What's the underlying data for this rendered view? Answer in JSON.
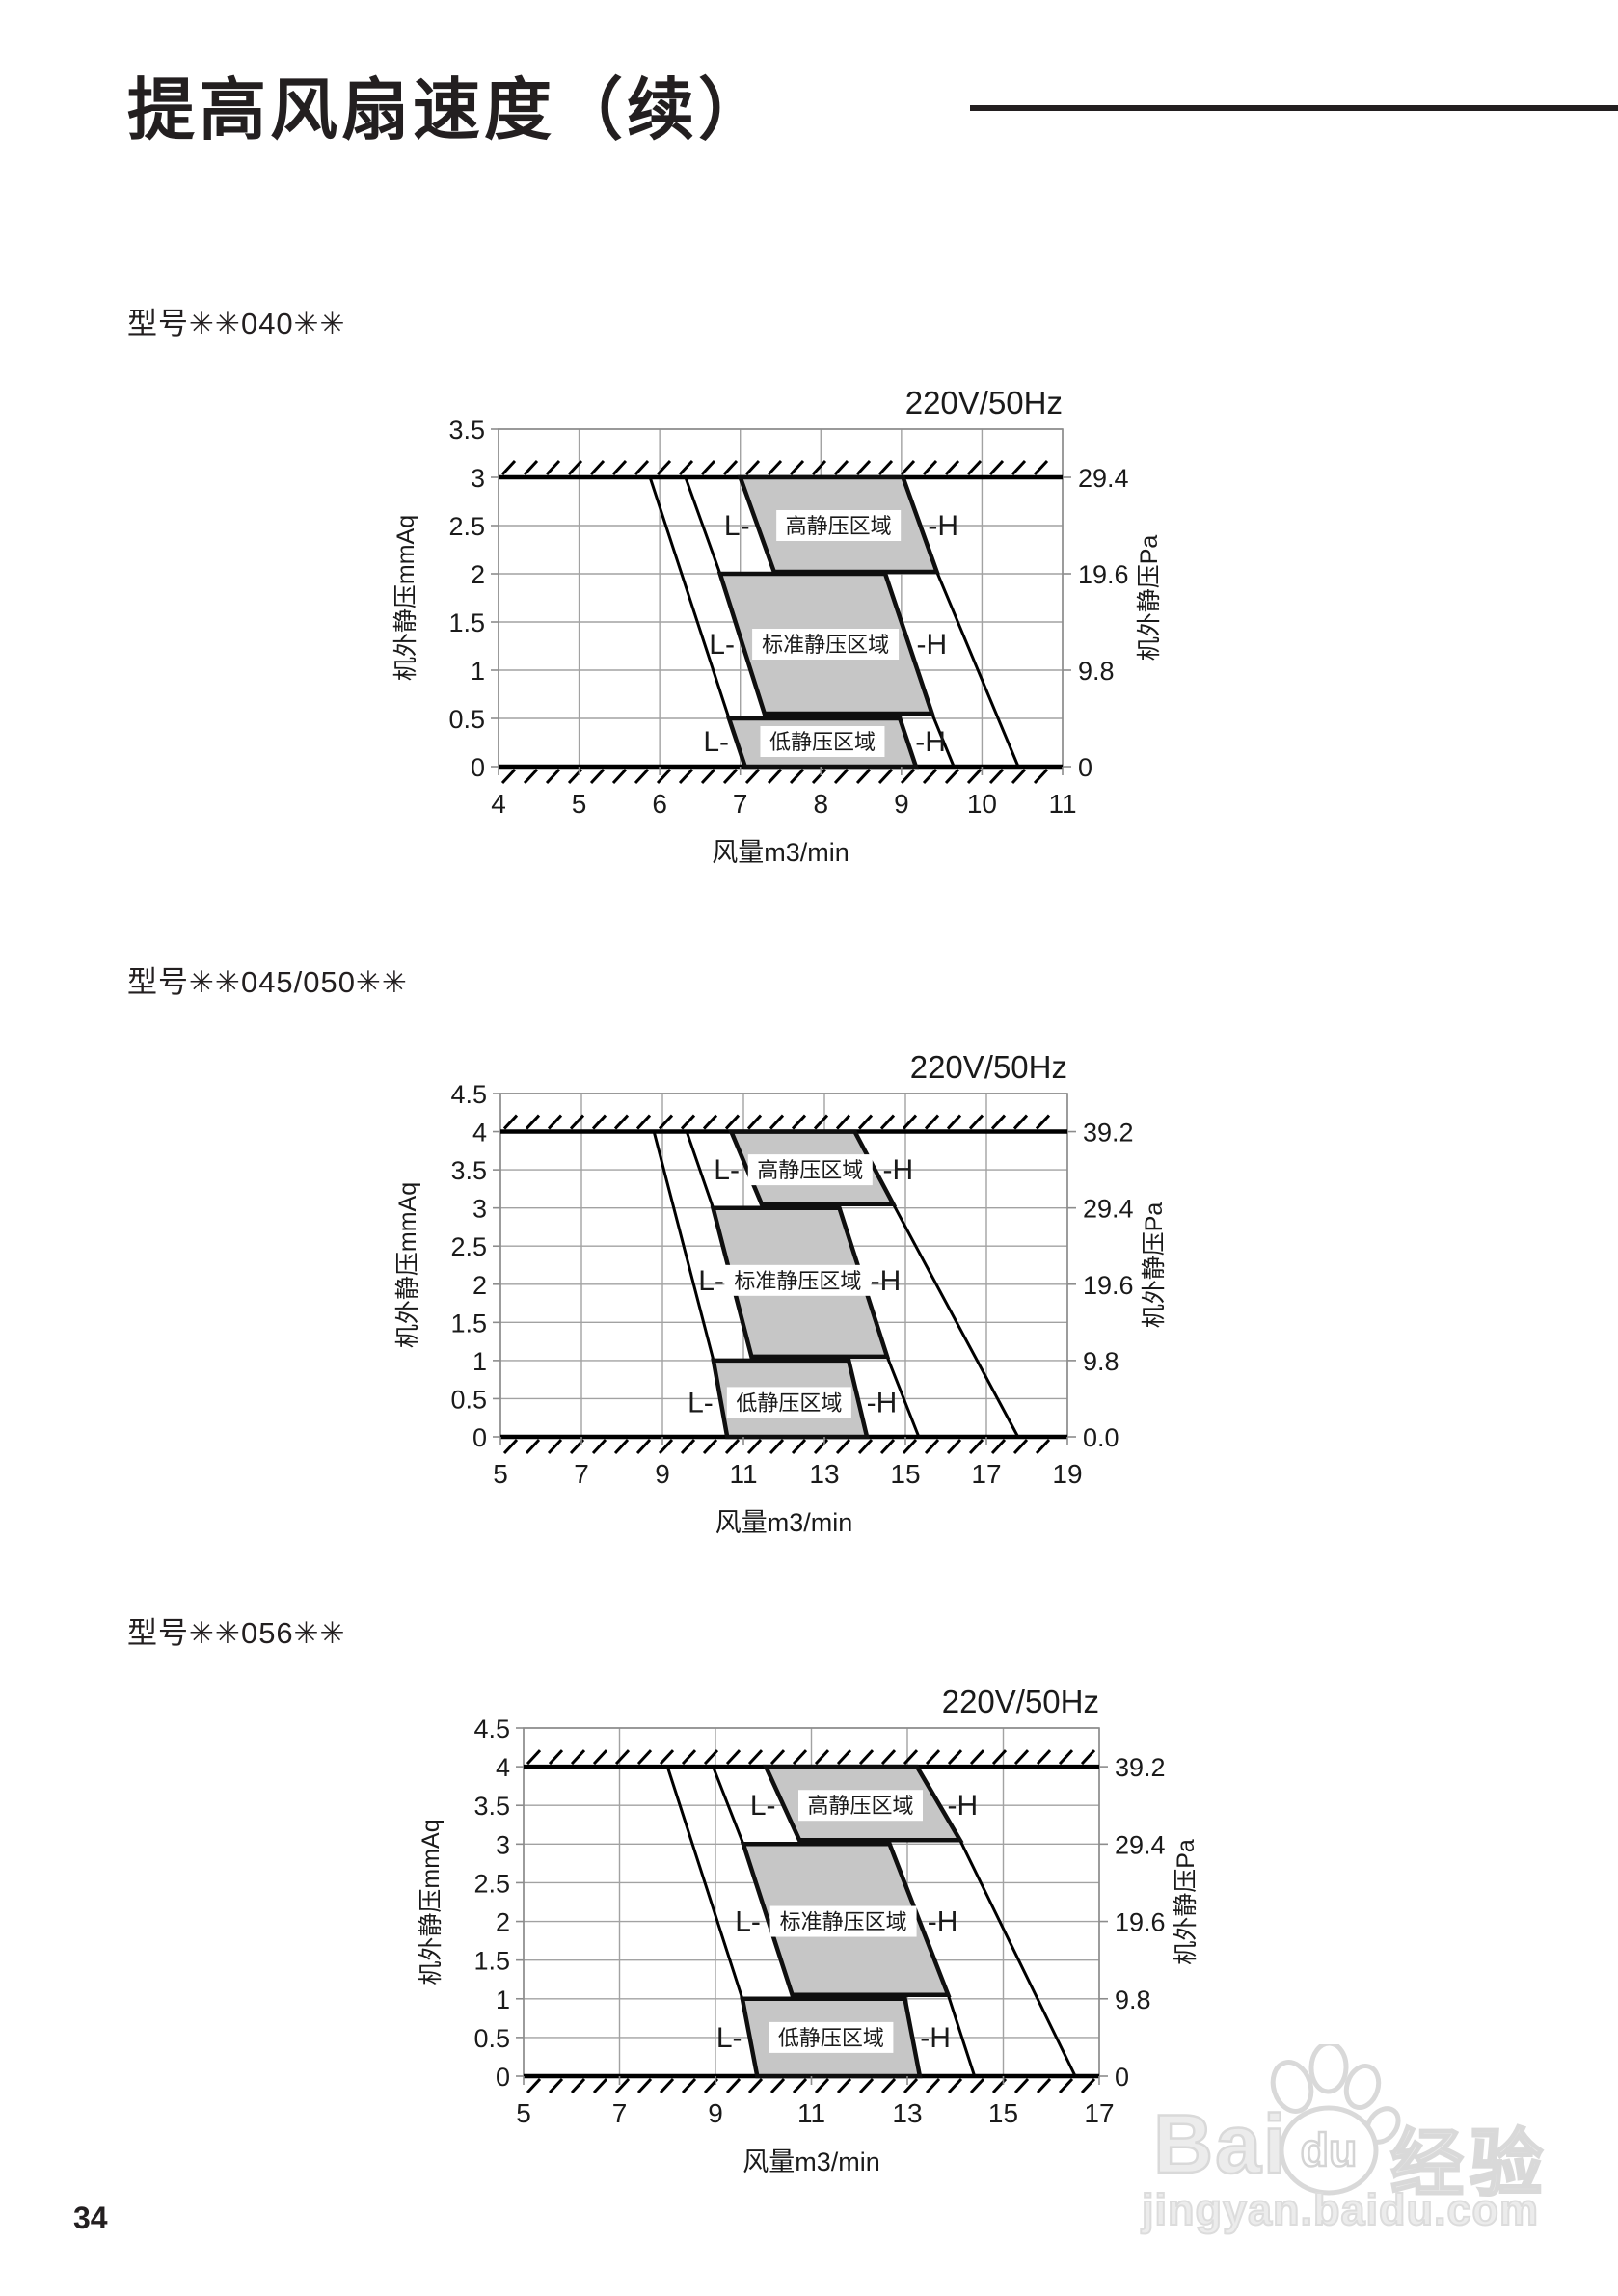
{
  "page": {
    "title": "提高风扇速度（续）",
    "page_number": "34",
    "watermark": {
      "brand_left": "Bai",
      "brand_paw_text": "du",
      "brand_right": "经验",
      "url": "jingyan.baidu.com",
      "color": "#d9d9d9"
    }
  },
  "sections": [
    {
      "model": "型号✳✳040✳✳"
    },
    {
      "model": "型号✳✳045/050✳✳"
    },
    {
      "model": "型号✳✳056✳✳"
    }
  ],
  "colors": {
    "region_fill": "#c6c6c6",
    "region_stroke": "#0f0f0f",
    "grid": "#a2a2a2",
    "axis_border": "#8c8c8c",
    "text": "#1a1a1a",
    "hatch": "#000000"
  },
  "chart_data": [
    {
      "type": "area",
      "model_key": "040",
      "title": "220V/50Hz",
      "xlabel": "风量m3/min",
      "ylabel_left": "机外静压mmAq",
      "ylabel_right": "机外静压Pa",
      "xlim": [
        4,
        11
      ],
      "ylim": [
        0,
        3.5
      ],
      "xticks": [
        4,
        5,
        6,
        7,
        8,
        9,
        10,
        11
      ],
      "left_ticks": [
        {
          "v": 0,
          "label": "0"
        },
        {
          "v": 0.5,
          "label": "0.5"
        },
        {
          "v": 1,
          "label": "1"
        },
        {
          "v": 1.5,
          "label": "1.5"
        },
        {
          "v": 2,
          "label": "2"
        },
        {
          "v": 2.5,
          "label": "2.5"
        },
        {
          "v": 3,
          "label": "3"
        },
        {
          "v": 3.5,
          "label": "3.5"
        }
      ],
      "right_ticks": [
        {
          "v": 3,
          "label": "29.4"
        },
        {
          "v": 2,
          "label": "19.6"
        },
        {
          "v": 1,
          "label": "9.8"
        },
        {
          "v": 0,
          "label": "0"
        }
      ],
      "hatch_top": 3.0,
      "hatch_bottom": 0,
      "l_label": "L-",
      "h_label": "-H",
      "regions": [
        {
          "key": "high-static",
          "label": "高静压区域",
          "top_y": 3.0,
          "bot_y": 2.02,
          "top_x": [
            7.0,
            9.02
          ],
          "bot_x": [
            7.42,
            9.44
          ],
          "label_y": 2.5
        },
        {
          "key": "standard-static",
          "label": "标准静压区域",
          "top_y": 2.0,
          "bot_y": 0.55,
          "top_x": [
            6.75,
            8.8
          ],
          "bot_x": [
            7.3,
            9.38
          ],
          "label_y": 1.27
        },
        {
          "key": "low-static",
          "label": "低静压区域",
          "top_y": 0.5,
          "bot_y": 0,
          "top_x": [
            6.86,
            8.98
          ],
          "bot_x": [
            7.06,
            9.18
          ],
          "label_y": 0.26
        }
      ],
      "curves": [
        [
          5.88,
          3.0,
          6.86,
          0.5
        ],
        [
          6.32,
          3.0,
          6.75,
          2.0
        ],
        [
          9.38,
          0.55,
          9.65,
          0
        ],
        [
          9.44,
          2.02,
          10.45,
          0
        ]
      ]
    },
    {
      "type": "area",
      "model_key": "045-050",
      "title": "220V/50Hz",
      "xlabel": "风量m3/min",
      "ylabel_left": "机外静压mmAq",
      "ylabel_right": "机外静压Pa",
      "xlim": [
        5,
        19
      ],
      "ylim": [
        0,
        4.5
      ],
      "xticks": [
        5,
        7,
        9,
        11,
        13,
        15,
        17,
        19
      ],
      "left_ticks": [
        {
          "v": 0,
          "label": "0"
        },
        {
          "v": 0.5,
          "label": "0.5"
        },
        {
          "v": 1,
          "label": "1"
        },
        {
          "v": 1.5,
          "label": "1.5"
        },
        {
          "v": 2,
          "label": "2"
        },
        {
          "v": 2.5,
          "label": "2.5"
        },
        {
          "v": 3,
          "label": "3"
        },
        {
          "v": 3.5,
          "label": "3.5"
        },
        {
          "v": 4,
          "label": "4"
        },
        {
          "v": 4.5,
          "label": "4.5"
        }
      ],
      "right_ticks": [
        {
          "v": 4,
          "label": "39.2"
        },
        {
          "v": 3,
          "label": "29.4"
        },
        {
          "v": 2,
          "label": "19.6"
        },
        {
          "v": 1,
          "label": "9.8"
        },
        {
          "v": 0,
          "label": "0.0"
        }
      ],
      "hatch_top": 4.0,
      "hatch_bottom": 0,
      "l_label": "L-",
      "h_label": "-H",
      "regions": [
        {
          "key": "high-static",
          "label": "高静压区域",
          "top_y": 4.0,
          "bot_y": 3.05,
          "top_x": [
            10.7,
            13.75
          ],
          "bot_x": [
            11.45,
            14.7
          ],
          "label_y": 3.5
        },
        {
          "key": "standard-static",
          "label": "标准静压区域",
          "top_y": 3.0,
          "bot_y": 1.05,
          "top_x": [
            10.25,
            13.37
          ],
          "bot_x": [
            11.2,
            14.55
          ],
          "label_y": 2.05
        },
        {
          "key": "low-static",
          "label": "低静压区域",
          "top_y": 1.0,
          "bot_y": 0,
          "top_x": [
            10.26,
            13.6
          ],
          "bot_x": [
            10.6,
            14.05
          ],
          "label_y": 0.45
        }
      ],
      "curves": [
        [
          8.79,
          4.0,
          10.26,
          1.0
        ],
        [
          9.6,
          4.0,
          10.25,
          3.0
        ],
        [
          14.55,
          1.05,
          15.33,
          0
        ],
        [
          14.7,
          3.05,
          17.78,
          0
        ]
      ]
    },
    {
      "type": "area",
      "model_key": "056",
      "title": "220V/50Hz",
      "xlabel": "风量m3/min",
      "ylabel_left": "机外静压mmAq",
      "ylabel_right": "机外静压Pa",
      "xlim": [
        5,
        17
      ],
      "ylim": [
        0,
        4.5
      ],
      "xticks": [
        5,
        7,
        9,
        11,
        13,
        15,
        17
      ],
      "left_ticks": [
        {
          "v": 0,
          "label": "0"
        },
        {
          "v": 0.5,
          "label": "0.5"
        },
        {
          "v": 1,
          "label": "1"
        },
        {
          "v": 1.5,
          "label": "1.5"
        },
        {
          "v": 2,
          "label": "2"
        },
        {
          "v": 2.5,
          "label": "2.5"
        },
        {
          "v": 3,
          "label": "3"
        },
        {
          "v": 3.5,
          "label": "3.5"
        },
        {
          "v": 4,
          "label": "4"
        },
        {
          "v": 4.5,
          "label": "4.5"
        }
      ],
      "right_ticks": [
        {
          "v": 4,
          "label": "39.2"
        },
        {
          "v": 3,
          "label": "29.4"
        },
        {
          "v": 2,
          "label": "19.6"
        },
        {
          "v": 1,
          "label": "9.8"
        },
        {
          "v": 0,
          "label": "0"
        }
      ],
      "hatch_top": 4.0,
      "hatch_bottom": 0,
      "l_label": "L-",
      "h_label": "-H",
      "regions": [
        {
          "key": "high-static",
          "label": "高静压区域",
          "top_y": 4.0,
          "bot_y": 3.05,
          "top_x": [
            10.05,
            13.2
          ],
          "bot_x": [
            10.75,
            14.1
          ],
          "label_y": 3.5
        },
        {
          "key": "standard-static",
          "label": "标准静压区域",
          "top_y": 3.0,
          "bot_y": 1.05,
          "top_x": [
            9.58,
            12.63
          ],
          "bot_x": [
            10.6,
            13.85
          ],
          "label_y": 2.0
        },
        {
          "key": "low-static",
          "label": "低静压区域",
          "top_y": 1.0,
          "bot_y": 0,
          "top_x": [
            9.56,
            12.95
          ],
          "bot_x": [
            9.87,
            13.26
          ],
          "label_y": 0.5
        }
      ],
      "curves": [
        [
          8.0,
          4.0,
          9.56,
          1.0
        ],
        [
          8.95,
          4.0,
          9.58,
          3.0
        ],
        [
          13.85,
          1.05,
          14.4,
          0
        ],
        [
          14.1,
          3.05,
          16.5,
          0
        ]
      ]
    }
  ],
  "layout": {
    "section_tops": [
      310,
      993,
      1668
    ],
    "charts": [
      {
        "svg": [
          330,
          400,
          948,
          515
        ],
        "plot": [
          187,
          45,
          772,
          395
        ]
      },
      {
        "svg": [
          330,
          1075,
          948,
          545
        ],
        "plot": [
          189,
          59,
          777,
          415
        ]
      },
      {
        "svg": [
          330,
          1735,
          948,
          545
        ],
        "plot": [
          213,
          57,
          810,
          418
        ]
      }
    ]
  }
}
